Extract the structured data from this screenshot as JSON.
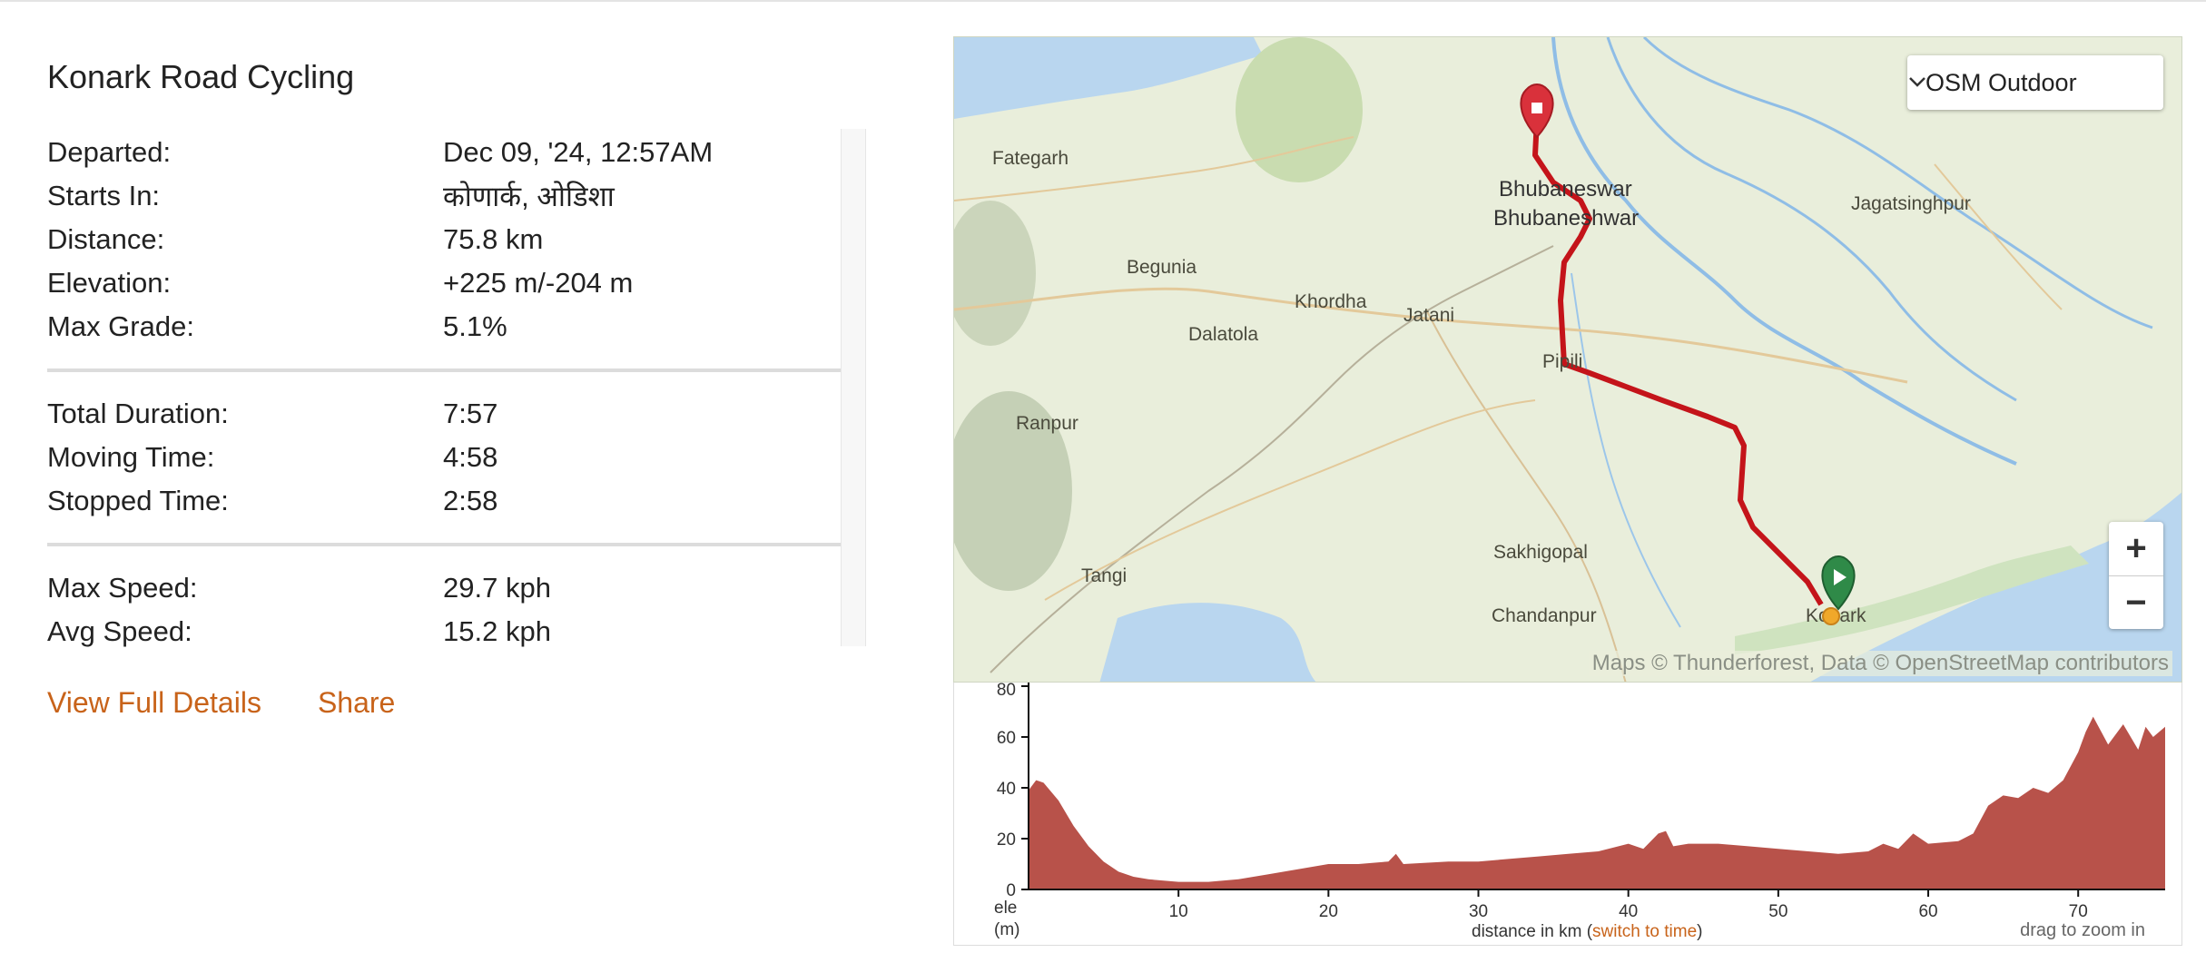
{
  "trip": {
    "title": "Konark Road Cycling",
    "stats_group_1": [
      {
        "label": "Departed:",
        "value": "Dec 09, '24, 12:57AM"
      },
      {
        "label": "Starts In:",
        "value": "कोणार्क, ओडिशा"
      },
      {
        "label": "Distance:",
        "value": "75.8 km"
      },
      {
        "label": "Elevation:",
        "value": "+225 m/-204 m"
      },
      {
        "label": "Max Grade:",
        "value": "5.1%"
      }
    ],
    "stats_group_2": [
      {
        "label": "Total Duration:",
        "value": "7:57"
      },
      {
        "label": "Moving Time:",
        "value": "4:58"
      },
      {
        "label": "Stopped Time:",
        "value": "2:58"
      }
    ],
    "stats_group_3": [
      {
        "label": "Max Speed:",
        "value": "29.7 kph"
      },
      {
        "label": "Avg Speed:",
        "value": "15.2 kph"
      }
    ]
  },
  "actions": {
    "view_full_details": "View Full Details",
    "share": "Share"
  },
  "map": {
    "layer_selected": "OSM Outdoor",
    "zoom_in": "+",
    "zoom_out": "−",
    "attribution": "Maps © Thunderforest, Data © OpenStreetMap contributors",
    "labels": {
      "fategarh": "Fategarh",
      "bhubaneswar_1": "Bhubaneswar",
      "bhubaneswar_2": "Bhubaneshwar",
      "jagatsinghpur": "Jagatsinghpur",
      "begunia": "Begunia",
      "khordha": "Khordha",
      "jatani": "Jatani",
      "dalatola": "Dalatola",
      "pipili": "Pipili",
      "ranpur": "Ranpur",
      "sakhigopal": "Sakhigopal",
      "tangi": "Tangi",
      "chandanpur": "Chandanpur",
      "konark": "Konark"
    },
    "colors": {
      "route": "#c4141a",
      "end_marker": "#d9313b",
      "start_marker": "#2f8a48",
      "current_dot": "#f0a82a"
    }
  },
  "elevation": {
    "y_ticks": [
      "0",
      "20",
      "40",
      "60",
      "80"
    ],
    "x_ticks": [
      "10",
      "20",
      "30",
      "40",
      "50",
      "60",
      "70"
    ],
    "y_unit_1": "ele",
    "y_unit_2": "(m)",
    "x_label_prefix": "distance in km (",
    "x_label_link": "switch to time",
    "x_label_suffix": ")",
    "drag_hint": "drag to zoom in",
    "fill_color": "#b8524a"
  },
  "chart_data": {
    "type": "area",
    "x": [
      0,
      0.5,
      1,
      2,
      3,
      4,
      5,
      6,
      7,
      8,
      10,
      12,
      14,
      16,
      18,
      20,
      22,
      24,
      24.5,
      25,
      28,
      30,
      32,
      34,
      36,
      38,
      40,
      41,
      42,
      42.5,
      43,
      44,
      46,
      48,
      50,
      52,
      54,
      56,
      57,
      58,
      59,
      60,
      62,
      63,
      64,
      65,
      66,
      67,
      68,
      69,
      70,
      70.5,
      71,
      72,
      73,
      74,
      74.5,
      75,
      75.8
    ],
    "y": [
      39,
      43,
      42,
      35,
      25,
      17,
      11,
      7,
      5,
      4,
      3,
      3,
      4,
      6,
      8,
      10,
      10,
      11,
      14,
      10,
      11,
      11,
      12,
      13,
      14,
      15,
      18,
      16,
      22,
      23,
      17,
      18,
      18,
      17,
      16,
      15,
      14,
      15,
      18,
      16,
      22,
      18,
      19,
      22,
      33,
      37,
      36,
      40,
      38,
      43,
      54,
      62,
      68,
      57,
      65,
      55,
      64,
      60,
      64
    ],
    "xlabel": "distance in km",
    "ylabel": "ele (m)",
    "xlim": [
      0,
      75.8
    ],
    "ylim": [
      0,
      80
    ],
    "x_ticks": [
      10,
      20,
      30,
      40,
      50,
      60,
      70
    ],
    "y_ticks": [
      0,
      20,
      40,
      60,
      80
    ],
    "grid": false
  }
}
